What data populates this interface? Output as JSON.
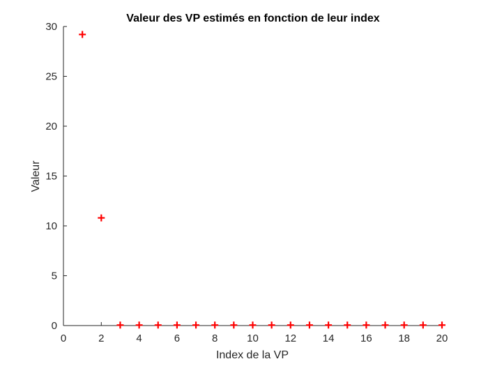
{
  "colors": {
    "marker": "#ff0000",
    "axis": "#262626",
    "background": "#ffffff"
  },
  "chart_data": {
    "type": "scatter",
    "title": "Valeur des VP estimés en fonction de leur index",
    "xlabel": "Index de la VP",
    "ylabel": "Valeur",
    "xlim": [
      0,
      20
    ],
    "ylim": [
      0,
      30
    ],
    "xticks": [
      "0",
      "2",
      "4",
      "6",
      "8",
      "10",
      "12",
      "14",
      "16",
      "18",
      "20"
    ],
    "yticks": [
      "0",
      "5",
      "10",
      "15",
      "20",
      "25",
      "30"
    ],
    "grid": false,
    "marker": "plus",
    "marker_color": "#ff0000",
    "series": [
      {
        "x": [
          1,
          2,
          3,
          4,
          5,
          6,
          7,
          8,
          9,
          10,
          11,
          12,
          13,
          14,
          15,
          16,
          17,
          18,
          19,
          20
        ],
        "y": [
          29.2,
          10.8,
          0.05,
          0.05,
          0.05,
          0.05,
          0.05,
          0.05,
          0.05,
          0.05,
          0.05,
          0.05,
          0.05,
          0.05,
          0.05,
          0.05,
          0.05,
          0.05,
          0.05,
          0.05
        ]
      }
    ]
  }
}
